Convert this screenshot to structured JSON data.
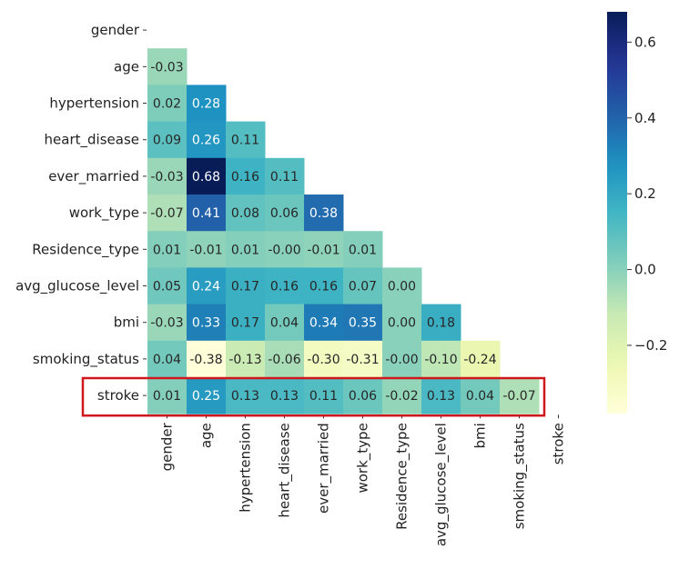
{
  "chart_data": {
    "type": "heatmap",
    "title": "",
    "variables": [
      "gender",
      "age",
      "hypertension",
      "heart_disease",
      "ever_married",
      "work_type",
      "Residence_type",
      "avg_glucose_level",
      "bmi",
      "smoking_status",
      "stroke"
    ],
    "mask": "upper-triangle-including-diagonal",
    "lower_triangle_values": [
      [],
      [
        -0.03
      ],
      [
        0.02,
        0.28
      ],
      [
        0.09,
        0.26,
        0.11
      ],
      [
        -0.03,
        0.68,
        0.16,
        0.11
      ],
      [
        -0.07,
        0.41,
        0.08,
        0.06,
        0.38
      ],
      [
        0.01,
        -0.01,
        0.01,
        -0.0,
        -0.01,
        0.01
      ],
      [
        0.05,
        0.24,
        0.17,
        0.16,
        0.16,
        0.07,
        0.0
      ],
      [
        -0.03,
        0.33,
        0.17,
        0.04,
        0.34,
        0.35,
        0.0,
        0.18
      ],
      [
        0.04,
        -0.38,
        -0.13,
        -0.06,
        -0.3,
        -0.31,
        -0.0,
        -0.1,
        -0.24
      ],
      [
        0.01,
        0.25,
        0.13,
        0.13,
        0.11,
        0.06,
        -0.02,
        0.13,
        0.04,
        -0.07
      ]
    ],
    "colormap": "YlGnBu",
    "color_range": [
      -0.38,
      0.68
    ],
    "colorbar_ticks": [
      0.6,
      0.4,
      0.2,
      0.0,
      -0.2
    ],
    "colorbar_tick_labels": [
      "0.6",
      "0.4",
      "0.2",
      "0.0",
      "−0.2"
    ],
    "highlight_row": "stroke",
    "highlight_color": "#d0181c"
  }
}
